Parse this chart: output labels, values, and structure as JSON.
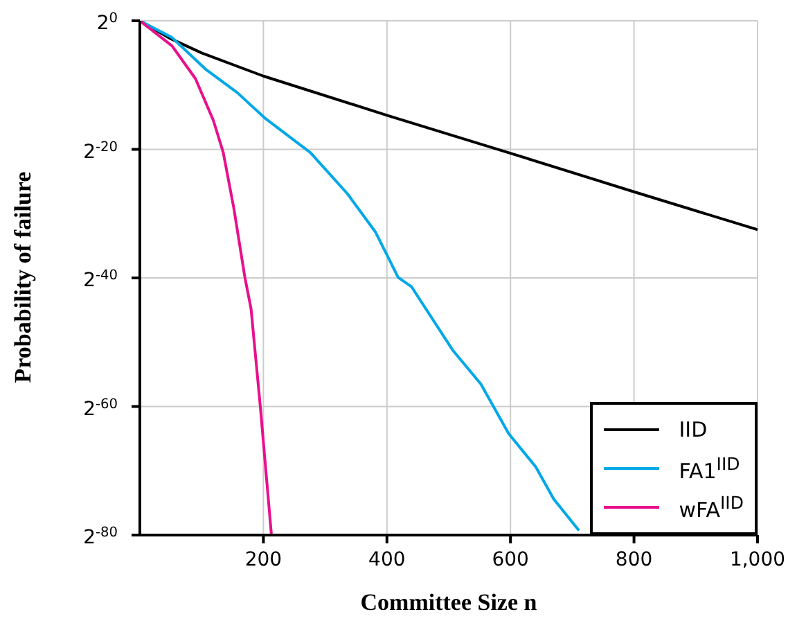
{
  "chart_data": {
    "type": "line",
    "xlabel": "Committee Size n",
    "ylabel": "Probability of failure",
    "xlim": [
      0,
      1000
    ],
    "xticks": [
      200,
      400,
      600,
      800,
      {
        "value": 1000,
        "label": "1,000"
      }
    ],
    "ylim": [
      8.271806125530277e-25,
      1
    ],
    "log": "y",
    "yticks": [
      {
        "value": 1,
        "label": "2$^{0}$"
      },
      {
        "value": 9.5367431640625e-07,
        "label": "2$^{-20}$"
      },
      {
        "value": 9.094947017729282e-13,
        "label": "2$^{-40}$"
      },
      {
        "value": 8.673617379884035e-19,
        "label": "2$^{-60}$"
      },
      {
        "value": 8.271806125530277e-25,
        "label": "2$^{-80}$"
      }
    ],
    "grid": true,
    "legend": "bottom right",
    "marker": "none",
    "line_style": "solid",
    "series": [
      {
        "name": "IID",
        "color": "#000000",
        "x": [
          0,
          50,
          100,
          200,
          400,
          600,
          800,
          1000
        ],
        "values": [
          1,
          0.144,
          0.03125,
          0.00258,
          3.76e-05,
          6.29e-07,
          9.83e-09,
          1.65e-10
        ]
      },
      {
        "name": "FA1$^{IID}$",
        "color": "#00a8e8",
        "x": [
          0,
          52,
          106,
          158,
          202,
          276,
          336,
          381,
          403,
          418,
          440,
          507,
          552,
          597,
          641,
          670,
          711
        ],
        "values": [
          1,
          0.165,
          0.00552,
          0.000425,
          2.85e-05,
          6.74e-07,
          7.99e-09,
          1.34e-10,
          7.28e-12,
          9.75e-13,
          3.45e-13,
          3.61e-16,
          9.81e-18,
          4.72e-20,
          1.28e-21,
          4.01e-23,
          1.34e-24
        ]
      },
      {
        "name": "wFA$^{IID}$",
        "color": "#e8108c",
        "x": [
          0,
          52,
          90,
          119,
          135,
          152,
          170,
          180,
          195,
          213
        ],
        "values": [
          1,
          0.067,
          0.00195,
          2.16e-05,
          6.74e-07,
          1.74e-09,
          9.75e-13,
          3.27e-14,
          8.67e-19,
          8.271806125530277e-25
        ]
      }
    ]
  }
}
